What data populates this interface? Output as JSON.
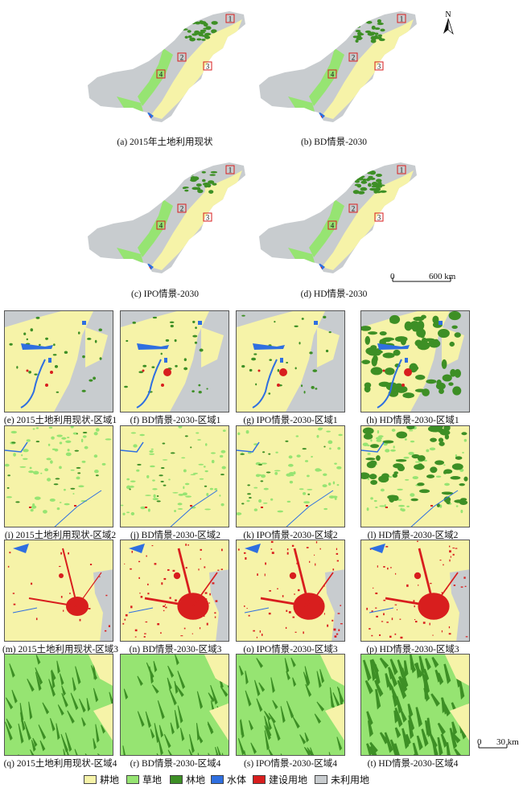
{
  "colors": {
    "cropland": "#f6f3a8",
    "grassland": "#96e472",
    "forest": "#3d8f25",
    "water": "#2f6fe0",
    "built": "#d81e1e",
    "unused": "#c8cccf"
  },
  "compass": {
    "label": "N"
  },
  "overview_maps": [
    {
      "caption": "(a) 2015年土地利用现状"
    },
    {
      "caption": "(b) BD情景-2030"
    },
    {
      "caption": "(c) IPO情景-2030"
    },
    {
      "caption": "(d) HD情景-2030"
    }
  ],
  "region_box_labels": [
    "1",
    "2",
    "3",
    "4"
  ],
  "scale_bar_overview": {
    "start": "0",
    "end": "600 km"
  },
  "zoom_panels": {
    "row1": [
      "(e) 2015土地利用现状-区域1",
      "(f) BD情景-2030-区域1",
      "(g) IPO情景-2030-区域1",
      "(h) HD情景-2030-区域1"
    ],
    "row2": [
      "(i) 2015土地利用现状-区域2",
      "(j) BD情景-2030-区域2",
      "(k) IPO情景-2030-区域2",
      "(l) HD情景-2030-区域2"
    ],
    "row3": [
      "(m) 2015土地利用现状-区域3",
      "(n) BD情景-2030-区域3",
      "(o) IPO情景-2030-区域3",
      "(p) HD情景-2030-区域3"
    ],
    "row4": [
      "(q) 2015土地利用现状-区域4",
      "(r) BD情景-2030-区域4",
      "(s) IPO情景-2030-区域4",
      "(t) HD情景-2030-区域4"
    ]
  },
  "scale_bar_zoom": {
    "start": "0",
    "end": "30 km"
  },
  "legend": [
    {
      "label": "耕地",
      "color": "#f6f3a8"
    },
    {
      "label": "草地",
      "color": "#96e472"
    },
    {
      "label": "林地",
      "color": "#3d8f25"
    },
    {
      "label": "水体",
      "color": "#2f6fe0"
    },
    {
      "label": "建设用地",
      "color": "#d81e1e"
    },
    {
      "label": "未利用地",
      "color": "#c8cccf"
    }
  ]
}
